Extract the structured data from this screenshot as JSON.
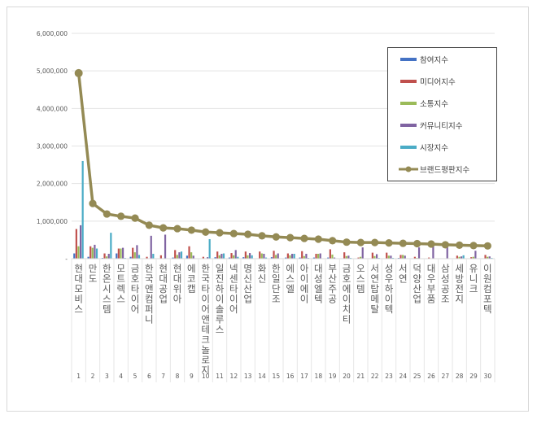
{
  "chart_data": {
    "type": "bar",
    "categories": [
      "현대모비스",
      "만도",
      "한온시스템",
      "모트렉스",
      "금호타이어",
      "한국앤컴퍼니",
      "현대공업",
      "현대위아",
      "에코캡",
      "한국타이어앤테크놀로지",
      "일진하이솔루스",
      "넥센타이어",
      "명신산업",
      "화신",
      "한일단조",
      "에스엘",
      "아이에이",
      "대성엘텍",
      "부산주공",
      "금호에이치티",
      "오스템",
      "서연탑메탈",
      "성우하이텍",
      "서연",
      "덕양산업",
      "대우부품",
      "삼성공조",
      "세방전지",
      "유니크",
      "이원컴포텍"
    ],
    "ranks": [
      "1",
      "2",
      "3",
      "4",
      "5",
      "6",
      "7",
      "8",
      "9",
      "10",
      "11",
      "12",
      "13",
      "14",
      "15",
      "16",
      "17",
      "18",
      "19",
      "20",
      "21",
      "22",
      "23",
      "24",
      "25",
      "26",
      "27",
      "28",
      "29",
      "30"
    ],
    "ylim": [
      0,
      6000000
    ],
    "yticks": [
      0,
      1000000,
      2000000,
      3000000,
      4000000,
      5000000,
      6000000
    ],
    "ytick_labels": [
      "-",
      "1,000,000",
      "2,000,000",
      "3,000,000",
      "4,000,000",
      "5,000,000",
      "6,000,000"
    ],
    "grid": true,
    "legend_position": "top-right",
    "series": [
      {
        "name": "참여지수",
        "type": "bar",
        "color": "#4472c4",
        "values": [
          140000,
          50000,
          20000,
          140000,
          50000,
          10000,
          0,
          30000,
          80000,
          0,
          40000,
          30000,
          40000,
          10000,
          40000,
          30000,
          30000,
          30000,
          30000,
          10000,
          10000,
          10000,
          10000,
          20000,
          10000,
          10000,
          0,
          10000,
          10000,
          10000
        ]
      },
      {
        "name": "미디어지수",
        "type": "bar",
        "color": "#c0504d",
        "values": [
          790000,
          330000,
          140000,
          270000,
          290000,
          50000,
          90000,
          230000,
          330000,
          50000,
          190000,
          150000,
          190000,
          190000,
          210000,
          140000,
          200000,
          130000,
          250000,
          170000,
          30000,
          160000,
          160000,
          100000,
          50000,
          30000,
          10000,
          80000,
          40000,
          100000
        ]
      },
      {
        "name": "소통지수",
        "type": "bar",
        "color": "#9bbb59",
        "values": [
          330000,
          290000,
          60000,
          270000,
          170000,
          10000,
          0,
          100000,
          170000,
          0,
          90000,
          90000,
          90000,
          140000,
          100000,
          90000,
          70000,
          130000,
          110000,
          70000,
          50000,
          70000,
          80000,
          100000,
          20000,
          10000,
          10000,
          50000,
          50000,
          50000
        ]
      },
      {
        "name": "커뮤니티지수",
        "type": "bar",
        "color": "#8064a2",
        "values": [
          890000,
          370000,
          130000,
          290000,
          360000,
          610000,
          640000,
          170000,
          80000,
          40000,
          130000,
          230000,
          150000,
          130000,
          140000,
          130000,
          130000,
          140000,
          30000,
          80000,
          300000,
          120000,
          80000,
          80000,
          300000,
          330000,
          320000,
          60000,
          210000,
          60000
        ]
      },
      {
        "name": "시장지수",
        "type": "bar",
        "color": "#4bacc6",
        "values": [
          2600000,
          270000,
          690000,
          20000,
          100000,
          130000,
          0,
          190000,
          10000,
          520000,
          140000,
          50000,
          90000,
          30000,
          0,
          130000,
          20000,
          10000,
          10000,
          20000,
          10000,
          20000,
          20000,
          10000,
          10000,
          10000,
          10000,
          90000,
          10000,
          20000
        ]
      },
      {
        "name": "브랜드평판지수",
        "type": "line",
        "color": "#948a54",
        "values": [
          4940000,
          1470000,
          1190000,
          1130000,
          1080000,
          890000,
          820000,
          800000,
          760000,
          710000,
          690000,
          670000,
          650000,
          610000,
          580000,
          560000,
          540000,
          520000,
          480000,
          440000,
          430000,
          430000,
          420000,
          410000,
          400000,
          390000,
          370000,
          360000,
          350000,
          340000
        ]
      }
    ]
  }
}
